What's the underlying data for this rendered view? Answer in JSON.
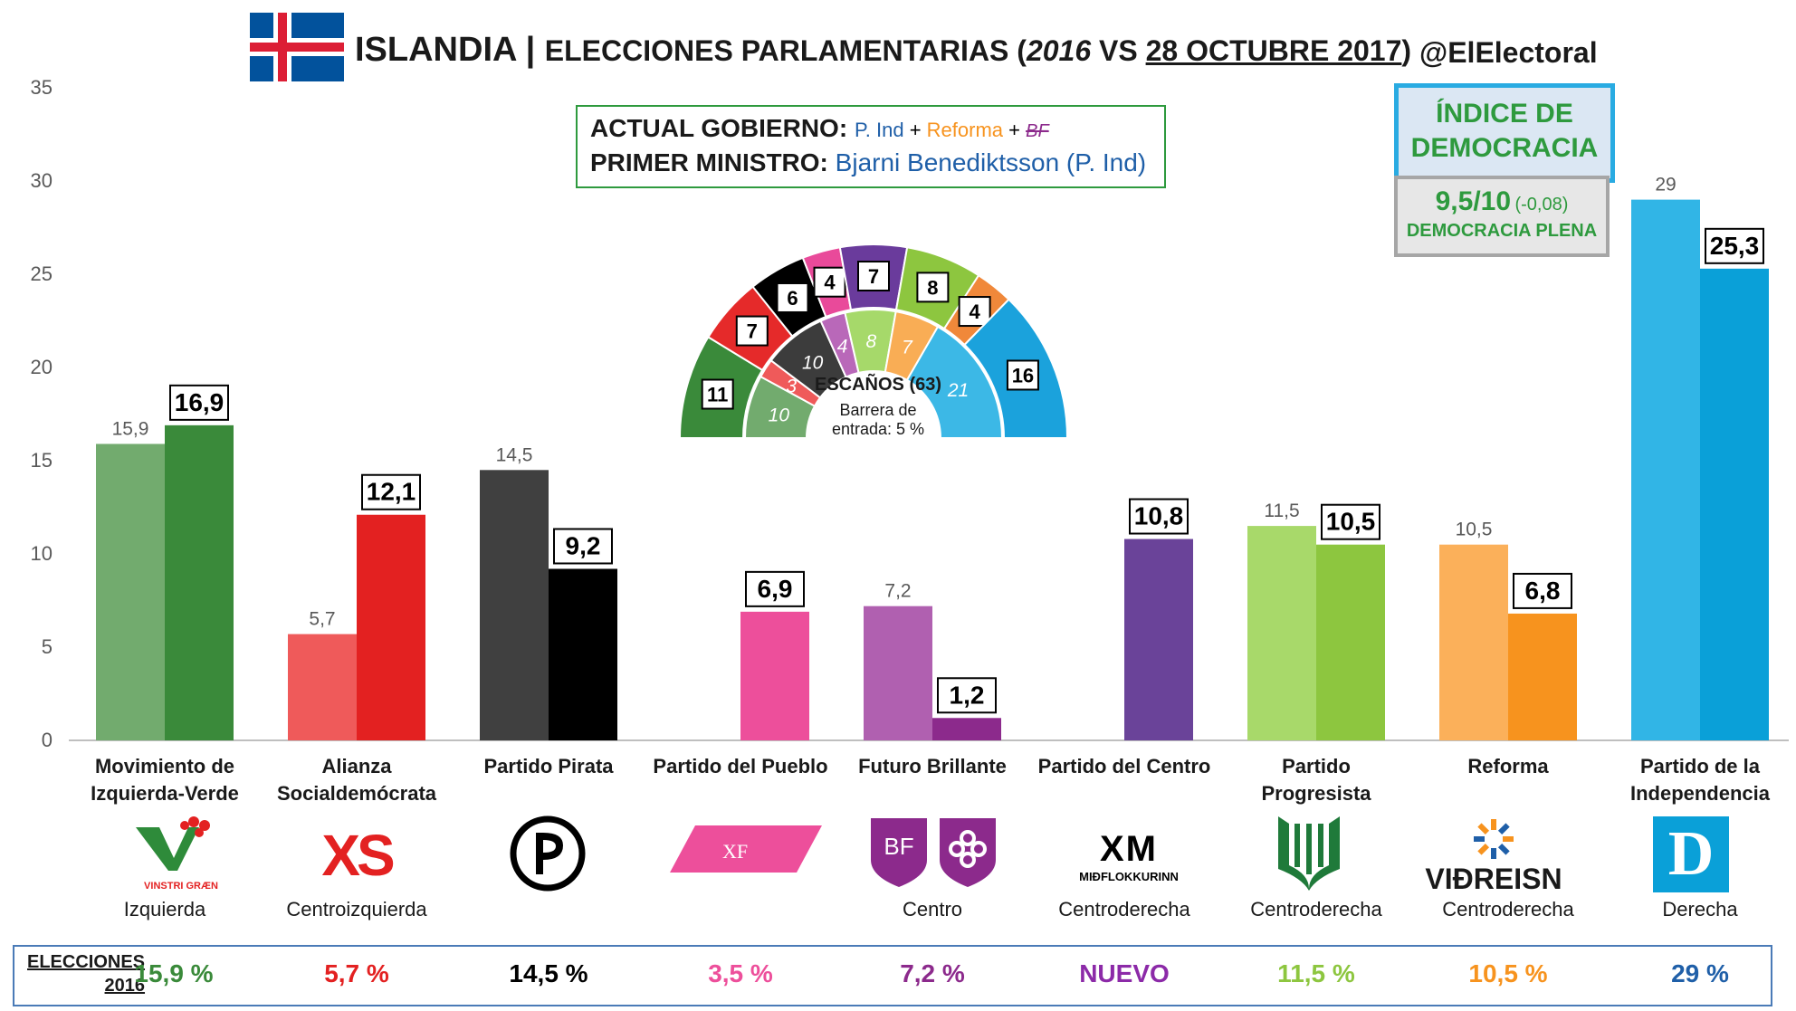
{
  "header": {
    "title_prefix": "ISLANDIA | ",
    "title_main": "ELECCIONES PARLAMENTARIAS (",
    "title_year_old": "2016",
    "title_vs": " VS ",
    "title_date": "28 OCTUBRE 2017",
    "title_close": ")",
    "handle": "@ElElectoral"
  },
  "government": {
    "gov_label": "ACTUAL GOBIERNO:",
    "gov_party1": "P. Ind",
    "gov_plus1": " + ",
    "gov_party2": "Reforma",
    "gov_plus2": " + ",
    "gov_party3": "BF",
    "pm_label": "PRIMER MINISTRO:",
    "pm_name": "Bjarni Benediktsson (P. Ind)"
  },
  "democracy": {
    "title_line1": "ÍNDICE DE",
    "title_line2": "DEMOCRACIA",
    "score": "9,5/10",
    "change": "(-0,08)",
    "category": "DEMOCRACIA PLENA"
  },
  "hemicycle": {
    "title": "ESCAÑOS (63)",
    "subtitle_line1": "Barrera de",
    "subtitle_line2": "entrada: 5 %",
    "outer_seats": [
      {
        "value": 11,
        "label": "11",
        "color": "#3a8a3a"
      },
      {
        "value": 7,
        "label": "7",
        "color": "#e52a2a"
      },
      {
        "value": 6,
        "label": "6",
        "color": "#000000"
      },
      {
        "value": 4,
        "label": "4",
        "color": "#e94a9a"
      },
      {
        "value": 7,
        "label": "7",
        "color": "#6a3b9c"
      },
      {
        "value": 8,
        "label": "8",
        "color": "#8dc63f"
      },
      {
        "value": 4,
        "label": "4",
        "color": "#f0883a"
      },
      {
        "value": 16,
        "label": "16",
        "color": "#1ba2dc"
      }
    ],
    "inner_seats": [
      {
        "value": 10,
        "label": "10",
        "color": "#72ab6e"
      },
      {
        "value": 3,
        "label": "3",
        "color": "#ef5a5a"
      },
      {
        "value": 10,
        "label": "10",
        "color": "#3c3c3c"
      },
      {
        "value": 4,
        "label": "4",
        "color": "#b968b9"
      },
      {
        "value": 8,
        "label": "8",
        "color": "#a6d96a"
      },
      {
        "value": 7,
        "label": "7",
        "color": "#f9ad55"
      },
      {
        "value": 21,
        "label": "21",
        "color": "#3cb8e6"
      }
    ]
  },
  "chart_data": {
    "type": "bar",
    "title": "ISLANDIA | ELECCIONES PARLAMENTARIAS (2016 VS 28 OCTUBRE 2017)",
    "ylim": [
      0,
      35
    ],
    "yticks": [
      "0",
      "5",
      "10",
      "15",
      "20",
      "25",
      "30",
      "35"
    ],
    "grid": false,
    "categories": [
      "Movimiento de Izquierda-Verde",
      "Alianza Socialdemócrata",
      "Partido Pirata",
      "Partido del Pueblo",
      "Futuro Brillante",
      "Partido del Centro",
      "Partido Progresista",
      "Reforma",
      "Partido de la Independencia"
    ],
    "series": [
      {
        "name": "2016",
        "values": [
          15.9,
          5.7,
          14.5,
          null,
          7.2,
          null,
          11.5,
          10.5,
          29
        ],
        "labels": [
          "15,9",
          "5,7",
          "14,5",
          "",
          "7,2",
          "",
          "11,5",
          "10,5",
          "29"
        ],
        "colors": [
          "#72ab6e",
          "#ef5a5a",
          "#404040",
          "",
          "#b060b0",
          "",
          "#a8d96a",
          "#fbb05a",
          "#31b5e6"
        ]
      },
      {
        "name": "28 octubre 2017",
        "values": [
          16.9,
          12.1,
          9.2,
          6.9,
          1.2,
          10.8,
          10.5,
          6.8,
          25.3
        ],
        "labels": [
          "16,9",
          "12,1",
          "9,2",
          "6,9",
          "1,2",
          "10,8",
          "10,5",
          "6,8",
          "25,3"
        ],
        "colors": [
          "#3a8a3a",
          "#e32121",
          "#000000",
          "#ed4f9b",
          "#8c2a8c",
          "#6a4399",
          "#8dc63f",
          "#f7931e",
          "#0aa0d8"
        ]
      }
    ]
  },
  "parties": [
    {
      "label_line1": "Movimiento de",
      "label_line2": "Izquierda-Verde",
      "logo_text": "VINSTRI GRÆN",
      "ideology": "Izquierda",
      "result_2016": "15,9 %",
      "result_color": "#3a8a3a"
    },
    {
      "label_line1": "Alianza",
      "label_line2": "Socialdemócrata",
      "logo_text": "XS",
      "ideology": "Centroizquierda",
      "result_2016": "5,7 %",
      "result_color": "#e32121"
    },
    {
      "label_line1": "Partido Pirata",
      "label_line2": "",
      "logo_text": "P",
      "ideology": "",
      "result_2016": "14,5 %",
      "result_color": "#000000"
    },
    {
      "label_line1": "Partido del Pueblo",
      "label_line2": "",
      "logo_text": "XF",
      "ideology": "",
      "result_2016": "3,5 %",
      "result_color": "#ed4f9b"
    },
    {
      "label_line1": "Futuro Brillante",
      "label_line2": "",
      "logo_text": "BF",
      "ideology": "Centro",
      "result_2016": "7,2 %",
      "result_color": "#8c2a8c"
    },
    {
      "label_line1": "Partido del Centro",
      "label_line2": "",
      "logo_text": "XM",
      "logo_sub": "MIÐFLOKKURINN",
      "ideology": "Centroderecha",
      "result_2016": "NUEVO",
      "result_color": "#8c2aa8"
    },
    {
      "label_line1": "Partido Progresista",
      "label_line2": "",
      "logo_text": "",
      "ideology": "Centroderecha",
      "result_2016": "11,5 %",
      "result_color": "#8dc63f"
    },
    {
      "label_line1": "Reforma",
      "label_line2": "",
      "logo_text": "VIÐREISN",
      "ideology": "Centroderecha",
      "result_2016": "10,5 %",
      "result_color": "#f7931e"
    },
    {
      "label_line1": "Partido de la",
      "label_line2": "Independencia",
      "logo_text": "D",
      "ideology": "Derecha",
      "result_2016": "29 %",
      "result_color": "#1f5fa8"
    }
  ],
  "bottom": {
    "label_line1": "ELECCIONES",
    "label_line2": "2016"
  },
  "colors": {
    "gov_pind": "#1f5fa8",
    "gov_reforma": "#f7931e",
    "gov_bf": "#8c2a8c",
    "pm_name": "#1f5fa8"
  }
}
